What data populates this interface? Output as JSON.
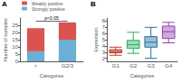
{
  "chart_data": [
    {
      "type": "bar",
      "title": "A",
      "stacked": true,
      "categories": [
        "r",
        "G2/3"
      ],
      "series": [
        {
          "name": "Strongly positive",
          "color": "#6baed6",
          "values": [
            7,
            15
          ]
        },
        {
          "name": "Weakly positive",
          "color": "#d9534f",
          "values": [
            16,
            12
          ]
        }
      ],
      "xlabel": "Categories",
      "ylabel": "Number of samples",
      "ylim": [
        0,
        30
      ],
      "yticks": [
        0,
        5,
        10,
        15,
        20,
        25
      ],
      "legend": "upper left",
      "grid": false,
      "annotations": [
        {
          "text": "p<0.05",
          "from": "r",
          "to": "G2/3",
          "y": 27.8
        }
      ]
    },
    {
      "type": "box",
      "title": "B",
      "categories": [
        "G1",
        "G2",
        "G3",
        "G4"
      ],
      "colors": [
        "#c0392b",
        "#27ae60",
        "#2471a3",
        "#8e44ad"
      ],
      "values": [
        {
          "whislo": 2.5,
          "q1": 2.9,
          "median": 3.1,
          "q3": 3.4,
          "whishi": 3.8
        },
        {
          "whislo": 2.8,
          "q1": 3.6,
          "median": 4.2,
          "q3": 4.9,
          "whishi": 6.2
        },
        {
          "whislo": 2.0,
          "q1": 3.8,
          "median": 4.6,
          "q3": 5.5,
          "whishi": 7.0
        },
        {
          "whislo": 4.5,
          "q1": 5.2,
          "median": 6.3,
          "q3": 7.2,
          "whishi": 7.8
        }
      ],
      "xlabel": "Categories",
      "ylabel": "Expression",
      "ylim": [
        1.5,
        8.5
      ],
      "yticks": [
        2,
        3,
        4,
        5,
        6,
        7,
        8
      ],
      "grid": false
    }
  ]
}
